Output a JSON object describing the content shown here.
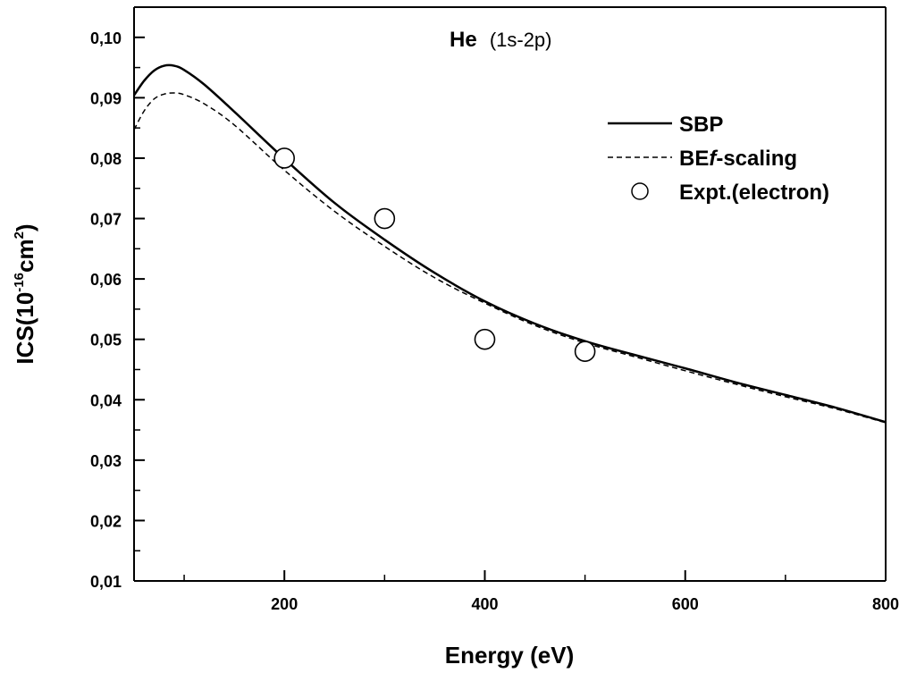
{
  "chart_data": {
    "type": "line",
    "title": "",
    "annotation": {
      "species": "He",
      "transition": "(1s-2p)"
    },
    "xlabel": "Energy (eV)",
    "ylabel": {
      "prefix": "ICS(10",
      "exp1": "-16",
      "mid": "cm",
      "exp2": "2",
      "suffix": ")"
    },
    "xlim": [
      50,
      800
    ],
    "ylim": [
      0.01,
      0.105
    ],
    "x_ticks": [
      200,
      400,
      600,
      800
    ],
    "x_minor_ticks": [
      100,
      300,
      500,
      700
    ],
    "x_tick_labels": [
      "200",
      "400",
      "600",
      "800"
    ],
    "y_ticks": [
      0.01,
      0.02,
      0.03,
      0.04,
      0.05,
      0.06,
      0.07,
      0.08,
      0.09,
      0.1
    ],
    "y_minor_ticks": [
      0.015,
      0.025,
      0.035,
      0.045,
      0.055,
      0.065,
      0.075,
      0.085,
      0.095
    ],
    "y_tick_labels": [
      "0,01",
      "0,02",
      "0,03",
      "0,04",
      "0,05",
      "0,06",
      "0,07",
      "0,08",
      "0,09",
      "0,10"
    ],
    "legend_position": "top-right",
    "series": [
      {
        "name": "SBP",
        "style": "solid",
        "x": [
          50,
          60,
          70,
          80,
          90,
          100,
          120,
          150,
          200,
          250,
          300,
          350,
          400,
          450,
          500,
          550,
          600,
          650,
          700,
          750,
          800
        ],
        "values": [
          0.0904,
          0.0928,
          0.0945,
          0.0953,
          0.0953,
          0.0946,
          0.0922,
          0.0877,
          0.0799,
          0.0726,
          0.0665,
          0.061,
          0.0563,
          0.0526,
          0.0497,
          0.0474,
          0.0452,
          0.0429,
          0.0408,
          0.0387,
          0.0363
        ]
      },
      {
        "name": "BEf-scaling",
        "style": "dashed",
        "x": [
          50,
          60,
          70,
          80,
          90,
          100,
          120,
          150,
          200,
          250,
          300,
          350,
          400,
          450,
          500,
          550,
          600,
          650,
          700,
          750,
          800
        ],
        "values": [
          0.0847,
          0.0878,
          0.0898,
          0.0906,
          0.0908,
          0.0905,
          0.089,
          0.0855,
          0.078,
          0.0712,
          0.0654,
          0.0602,
          0.056,
          0.0523,
          0.0494,
          0.0471,
          0.0448,
          0.0426,
          0.0405,
          0.0385,
          0.0362
        ]
      },
      {
        "name": "Expt.(electron)",
        "style": "open-circle",
        "x": [
          200,
          300,
          400,
          500
        ],
        "values": [
          0.08,
          0.07,
          0.05,
          0.048
        ]
      }
    ]
  }
}
